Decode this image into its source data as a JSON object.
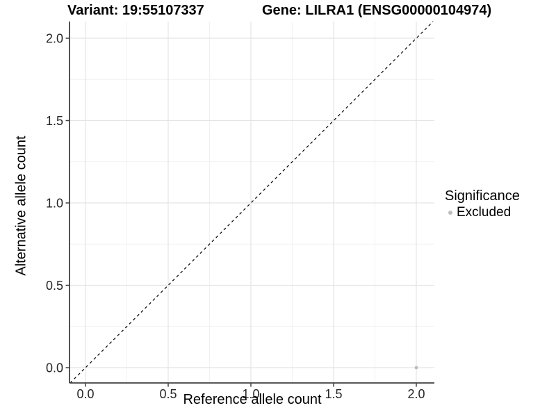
{
  "chart_data": {
    "type": "scatter",
    "titles": {
      "left": "Variant: 19:55107337",
      "right": "Gene: LILRA1 (ENSG00000104974)"
    },
    "xlabel": "Reference allele count",
    "ylabel": "Alternative allele count",
    "xlim": [
      -0.09,
      2.11
    ],
    "ylim": [
      -0.09,
      2.11
    ],
    "x_ticks": [
      0,
      0.5,
      1,
      1.5,
      2
    ],
    "x_tick_labels": [
      "0.0",
      "0.5",
      "1.0",
      "1.5",
      "2.0"
    ],
    "y_ticks": [
      0,
      0.5,
      1,
      1.5,
      2
    ],
    "y_tick_labels": [
      "0.0",
      "0.5",
      "1.0",
      "1.5",
      "2.0"
    ],
    "x_minor_ticks": [
      0.25,
      0.75,
      1.25,
      1.75
    ],
    "y_minor_ticks": [
      0.25,
      0.75,
      1.25,
      1.75
    ],
    "grid": true,
    "reference_line": {
      "type": "identity",
      "style": "dashed",
      "color": "#000000"
    },
    "series": [
      {
        "name": "Excluded",
        "color": "#bdbdbd",
        "points": [
          [
            2,
            0
          ]
        ]
      }
    ],
    "legend": {
      "title": "Significance",
      "position": "right",
      "entries": [
        {
          "label": "Excluded",
          "color": "#bdbdbd",
          "marker": "circle"
        }
      ]
    },
    "colors": {
      "grid_major": "#e4e4e4",
      "grid_minor": "#f1f1f1",
      "axis": "#404040",
      "tick_label": "#262626"
    }
  }
}
